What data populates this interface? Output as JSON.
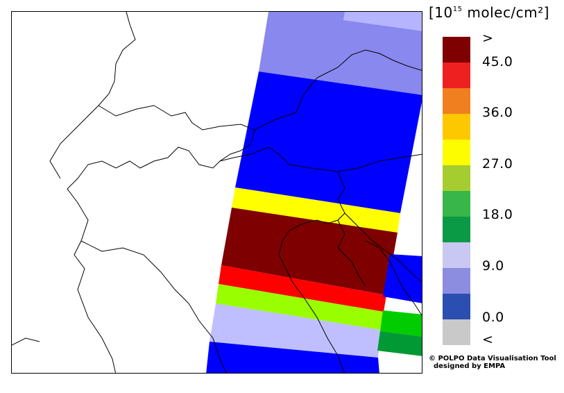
{
  "legend": {
    "unit_prefix": "[10",
    "unit_exp": "15",
    "unit_suffix": " molec/cm²]",
    "colors": [
      "#7f0000",
      "#ef2020",
      "#f07f20",
      "#fec800",
      "#fdfd00",
      "#a6cd30",
      "#38b64a",
      "#0a9a45",
      "#c8c8f2",
      "#8c8ce0",
      "#2a4fb0",
      "#c9c9c9"
    ],
    "tick_labels": [
      ">",
      "45.0",
      "36.0",
      "27.0",
      "18.0",
      "9.0",
      "0.0",
      "<"
    ]
  },
  "swath_bands": [
    {
      "color": "#8888ee"
    },
    {
      "color": "#0000ff"
    },
    {
      "color": "#ffff00"
    },
    {
      "color": "#7f0000"
    },
    {
      "color": "#ff0000"
    },
    {
      "color": "#99ff00"
    },
    {
      "color": "#bfbfff"
    },
    {
      "color": "#0000ff"
    }
  ],
  "credit": {
    "line1": "© POLPO Data Visualisation Tool",
    "line2": "  designed by EMPA"
  }
}
